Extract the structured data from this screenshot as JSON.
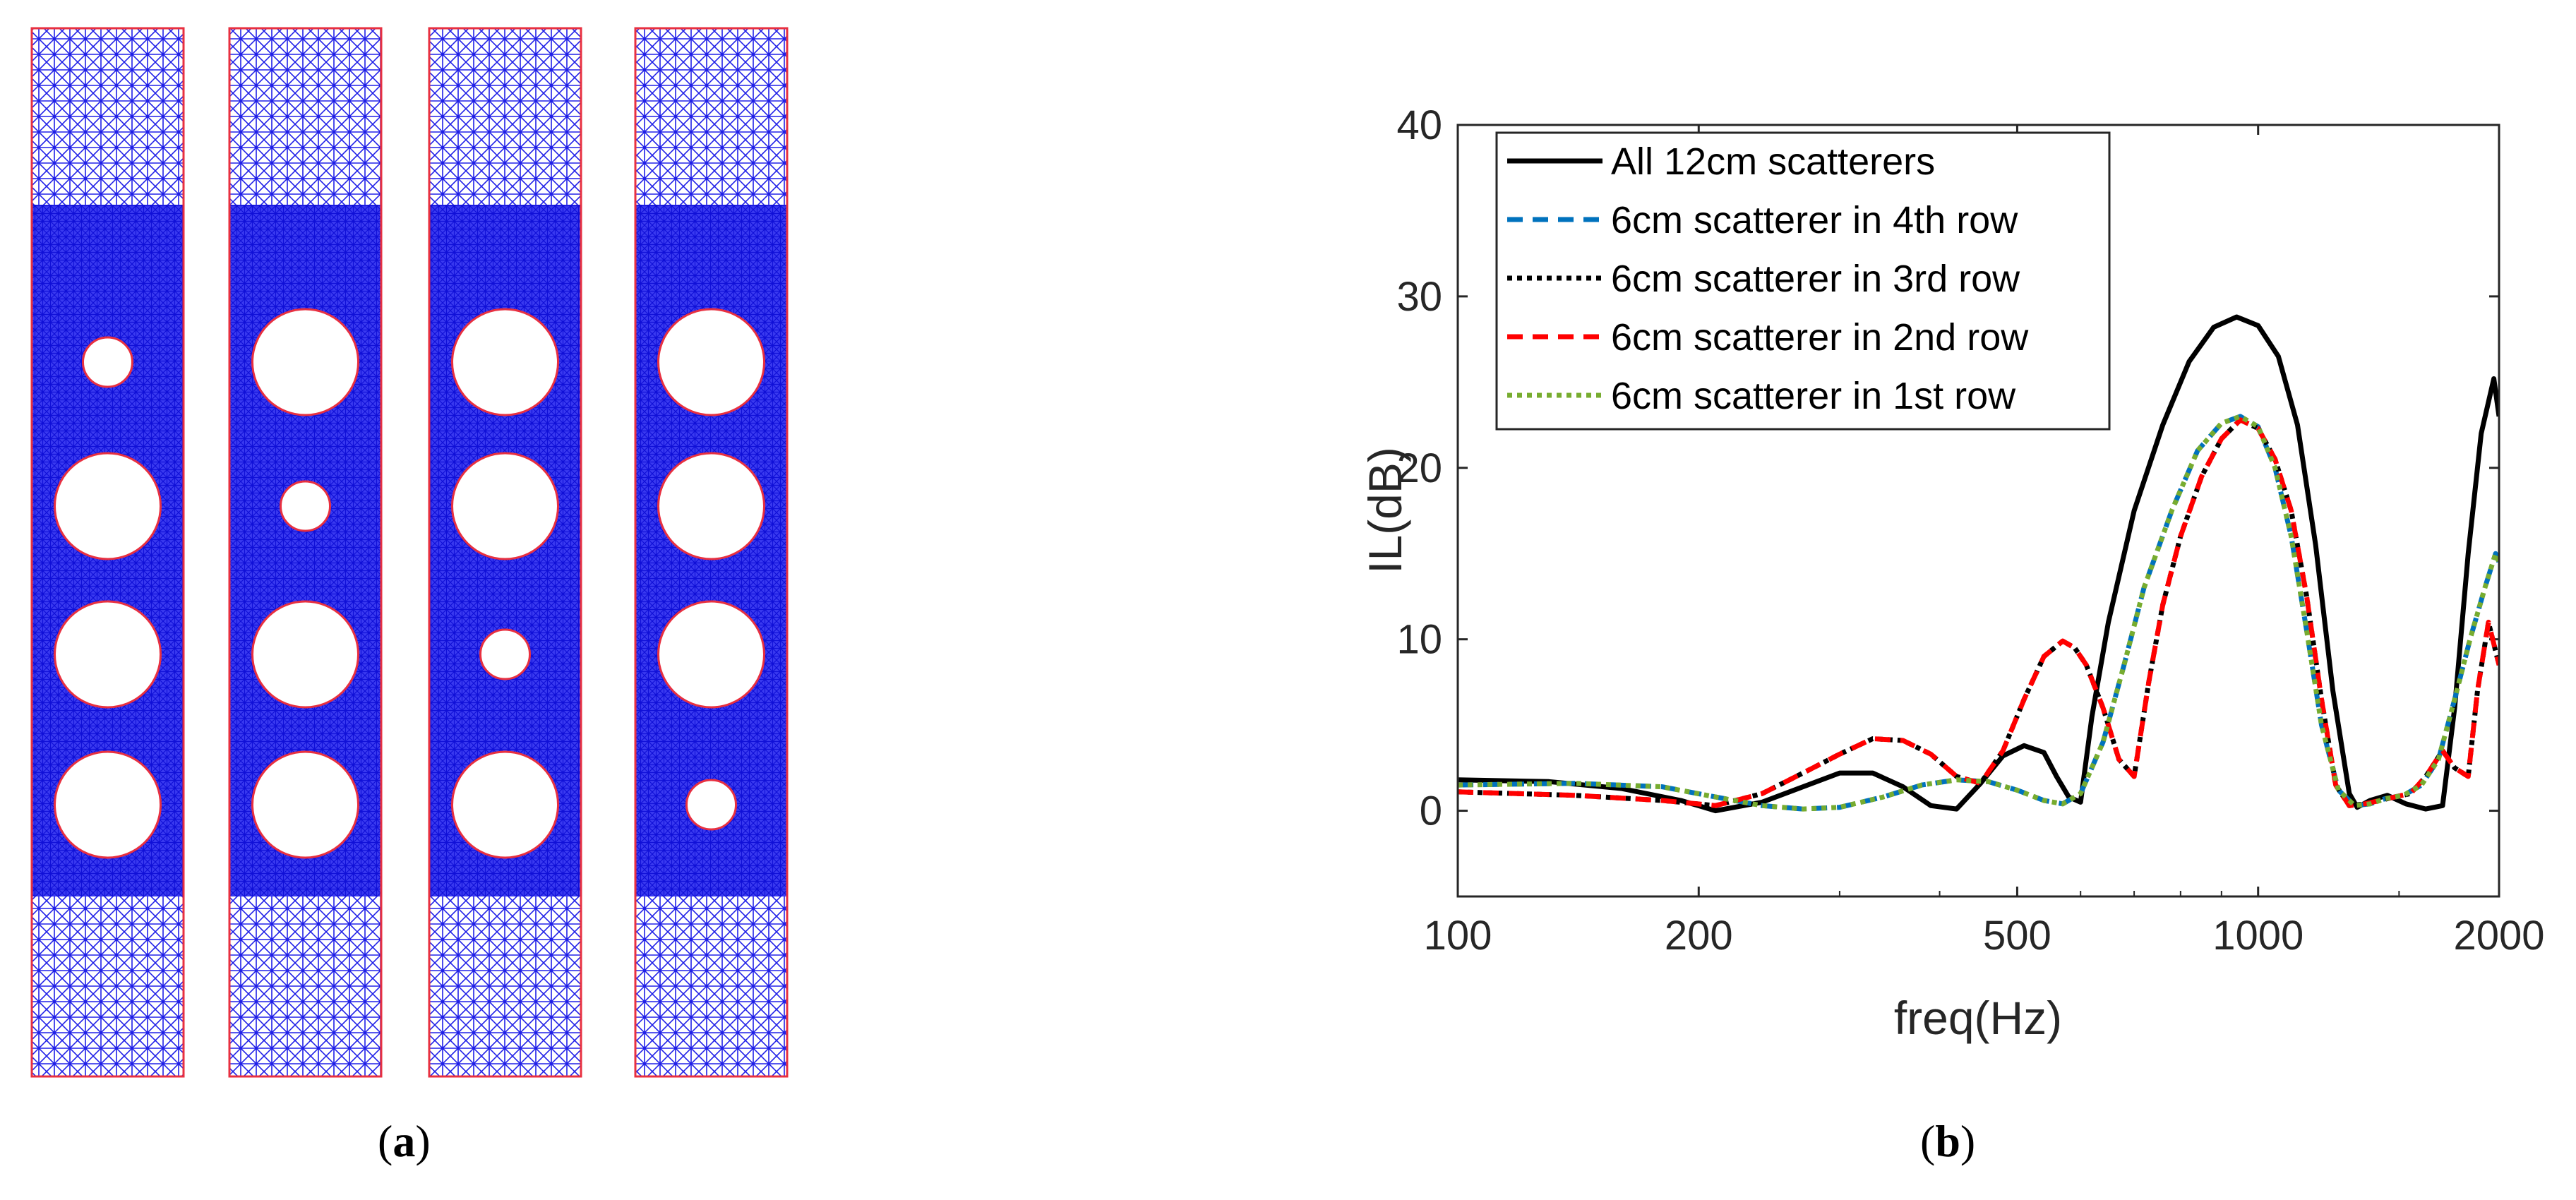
{
  "figure": {
    "panel_a_label": {
      "open": "(",
      "letter": "a",
      "close": ")"
    },
    "panel_b_label": {
      "open": "(",
      "letter": "b",
      "close": ")"
    },
    "mesh_panels": [
      {
        "name": "config-6cm-row-1",
        "small_scatterer_position": 1
      },
      {
        "name": "config-6cm-row-2",
        "small_scatterer_position": 2
      },
      {
        "name": "config-6cm-row-3",
        "small_scatterer_position": 3
      },
      {
        "name": "config-6cm-row-4",
        "small_scatterer_position": 4
      }
    ],
    "mesh_colors": {
      "mesh": "#2020e8",
      "boundary": "#e83040",
      "hole": "#ffffff"
    }
  },
  "chart_data": {
    "type": "line",
    "xscale": "log",
    "xlabel": "freq(Hz)",
    "ylabel": "IL(dB)",
    "xlim": [
      100,
      2000
    ],
    "ylim": [
      -5,
      40
    ],
    "xticks": [
      100,
      200,
      500,
      1000,
      2000
    ],
    "xtick_labels": [
      "100",
      "200",
      "500",
      "1000",
      "2000"
    ],
    "yticks": [
      0,
      10,
      20,
      30,
      40
    ],
    "ytick_labels": [
      "0",
      "10",
      "20",
      "30",
      "40"
    ],
    "legend_position": "top-left",
    "series": [
      {
        "name": "All 12cm scatterers",
        "color": "#000000",
        "dash": "solid",
        "x": [
          100,
          130,
          160,
          190,
          210,
          240,
          270,
          300,
          330,
          360,
          390,
          420,
          450,
          480,
          510,
          540,
          560,
          580,
          600,
          620,
          650,
          700,
          760,
          820,
          880,
          940,
          1000,
          1060,
          1120,
          1180,
          1240,
          1300,
          1330,
          1380,
          1450,
          1530,
          1620,
          1700,
          1760,
          1830,
          1900,
          1970,
          2000
        ],
        "y": [
          1.8,
          1.7,
          1.3,
          0.6,
          0.0,
          0.5,
          1.4,
          2.2,
          2.2,
          1.4,
          0.3,
          0.1,
          1.6,
          3.2,
          3.8,
          3.4,
          2.0,
          0.8,
          0.5,
          5.5,
          11.0,
          17.5,
          22.5,
          26.2,
          28.2,
          28.8,
          28.3,
          26.5,
          22.5,
          15.5,
          7.0,
          1.0,
          0.2,
          0.6,
          0.9,
          0.4,
          0.1,
          0.3,
          6.0,
          15.0,
          22.0,
          25.2,
          23.0
        ]
      },
      {
        "name": "6cm scatterer in 4th row",
        "color": "#0072bd",
        "dash": "dashed",
        "x": [
          100,
          140,
          180,
          210,
          240,
          270,
          300,
          340,
          380,
          420,
          460,
          500,
          540,
          570,
          600,
          640,
          680,
          720,
          780,
          840,
          900,
          950,
          1000,
          1050,
          1100,
          1150,
          1200,
          1260,
          1320,
          1380,
          1440,
          1520,
          1600,
          1680,
          1760,
          1840,
          1920,
          1980,
          2000
        ],
        "y": [
          1.5,
          1.6,
          1.4,
          0.8,
          0.3,
          0.1,
          0.2,
          0.8,
          1.5,
          1.8,
          1.7,
          1.2,
          0.6,
          0.4,
          1.0,
          4.0,
          8.5,
          13.0,
          17.5,
          21.0,
          22.6,
          23.0,
          22.4,
          20.0,
          16.0,
          10.5,
          5.0,
          1.2,
          0.3,
          0.4,
          0.7,
          0.9,
          1.5,
          3.0,
          6.5,
          10.0,
          13.0,
          15.0,
          14.5
        ]
      },
      {
        "name": "6cm scatterer in 3rd row",
        "color": "#000000",
        "dash": "dotted",
        "x": [
          100,
          140,
          180,
          210,
          240,
          270,
          300,
          330,
          360,
          390,
          420,
          450,
          480,
          510,
          540,
          570,
          590,
          610,
          640,
          670,
          700,
          730,
          760,
          800,
          850,
          900,
          950,
          1000,
          1050,
          1100,
          1150,
          1200,
          1250,
          1300,
          1360,
          1420,
          1480,
          1550,
          1620,
          1700,
          1760,
          1830,
          1880,
          1940,
          2000
        ],
        "y": [
          1.1,
          0.9,
          0.6,
          0.3,
          1.0,
          2.2,
          3.3,
          4.2,
          4.1,
          3.3,
          2.0,
          1.6,
          3.5,
          6.5,
          9.0,
          9.9,
          9.5,
          8.5,
          6.0,
          3.0,
          2.0,
          7.5,
          12.0,
          16.0,
          19.5,
          21.7,
          22.8,
          22.3,
          20.5,
          17.5,
          12.5,
          6.5,
          1.5,
          0.3,
          0.4,
          0.6,
          0.8,
          1.0,
          2.0,
          3.5,
          2.5,
          2.0,
          7.0,
          11.0,
          8.5
        ]
      },
      {
        "name": "6cm scatterer in 2nd row",
        "color": "#ff0000",
        "dash": "dashed",
        "x": [
          100,
          140,
          180,
          210,
          240,
          270,
          300,
          330,
          360,
          390,
          420,
          450,
          480,
          510,
          540,
          570,
          590,
          610,
          640,
          670,
          700,
          730,
          760,
          800,
          850,
          900,
          950,
          1000,
          1050,
          1100,
          1150,
          1200,
          1250,
          1300,
          1360,
          1420,
          1480,
          1550,
          1620,
          1700,
          1760,
          1830,
          1880,
          1940,
          2000
        ],
        "y": [
          1.1,
          0.9,
          0.6,
          0.3,
          1.0,
          2.2,
          3.3,
          4.2,
          4.1,
          3.3,
          2.0,
          1.6,
          3.5,
          6.5,
          9.0,
          9.9,
          9.5,
          8.5,
          6.0,
          3.0,
          2.0,
          7.5,
          12.0,
          16.0,
          19.5,
          21.7,
          22.8,
          22.3,
          20.5,
          17.5,
          12.5,
          6.5,
          1.5,
          0.3,
          0.4,
          0.6,
          0.8,
          1.0,
          2.0,
          3.5,
          2.5,
          2.0,
          7.0,
          11.0,
          8.5
        ]
      },
      {
        "name": "6cm scatterer in 1st row",
        "color": "#77ac30",
        "dash": "dotted",
        "x": [
          100,
          140,
          180,
          210,
          240,
          270,
          300,
          340,
          380,
          420,
          460,
          500,
          540,
          570,
          600,
          640,
          680,
          720,
          780,
          840,
          900,
          950,
          1000,
          1050,
          1100,
          1150,
          1200,
          1260,
          1320,
          1380,
          1440,
          1520,
          1600,
          1680,
          1760,
          1840,
          1920,
          1980,
          2000
        ],
        "y": [
          1.5,
          1.6,
          1.4,
          0.8,
          0.3,
          0.1,
          0.2,
          0.8,
          1.5,
          1.8,
          1.7,
          1.2,
          0.6,
          0.4,
          1.0,
          4.0,
          8.5,
          13.0,
          17.5,
          21.0,
          22.6,
          23.0,
          22.4,
          20.0,
          16.0,
          10.5,
          5.0,
          1.2,
          0.3,
          0.4,
          0.7,
          0.9,
          1.5,
          3.0,
          6.5,
          10.0,
          13.0,
          15.0,
          14.5
        ]
      }
    ]
  }
}
